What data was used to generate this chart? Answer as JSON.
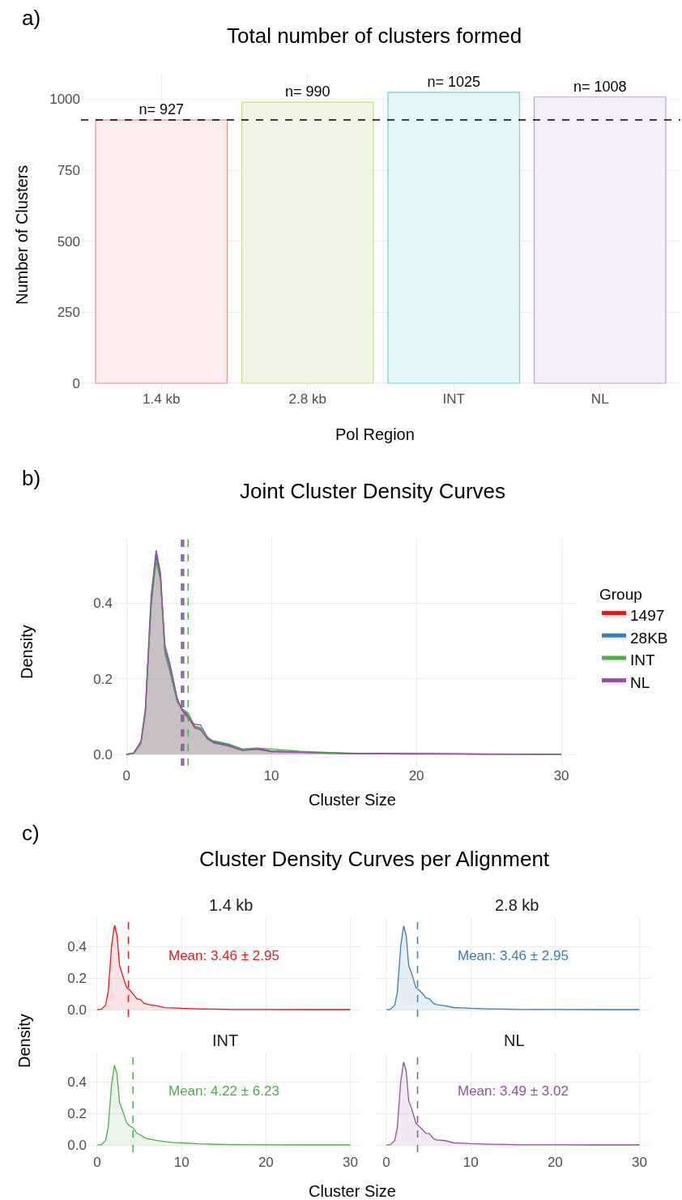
{
  "chart_data": [
    {
      "type": "bar",
      "title": "Total number of clusters formed",
      "xlabel": "Pol Region",
      "ylabel": "Number of Clusters",
      "annotations": [
        "a)"
      ],
      "categories": [
        "1.4 kb",
        "2.8 kb",
        "INT",
        "NL"
      ],
      "values": [
        927,
        990,
        1025,
        1008
      ],
      "colors": [
        "#fdeeed",
        "#f0f4e4",
        "#e2f6f8",
        "#f5effc"
      ],
      "value_labels": [
        "n= 927",
        "n= 990",
        "n= 1025",
        "n= 1008"
      ],
      "ylim": [
        -20,
        1090
      ],
      "yticks": [
        0,
        250,
        500,
        750,
        1000
      ],
      "grid": true,
      "ref_lines": [
        {
          "axis": "y",
          "value": 927,
          "color": "#000000",
          "line_style": "dashed"
        }
      ]
    },
    {
      "type": "area",
      "title": "Joint Cluster Density Curves",
      "xlabel": "Cluster Size",
      "ylabel": "Density",
      "annotations": [
        "b)"
      ],
      "legend_title": "Group",
      "legend": "right",
      "x": [
        0,
        0.5,
        1,
        1.3,
        1.7,
        2.05,
        2.35,
        2.65,
        3,
        3.5,
        3.85,
        4.25,
        4.7,
        5.1,
        5.6,
        6,
        7,
        8,
        9,
        10,
        12,
        14,
        16,
        20,
        25,
        30
      ],
      "series": [
        {
          "name": "1497",
          "color": "#e41a1c",
          "values": [
            0,
            0.003,
            0.03,
            0.11,
            0.4,
            0.535,
            0.47,
            0.27,
            0.22,
            0.14,
            0.12,
            0.1,
            0.07,
            0.065,
            0.04,
            0.034,
            0.026,
            0.013,
            0.015,
            0.009,
            0.006,
            0.004,
            0.002,
            0.002,
            0.001,
            0.001
          ]
        },
        {
          "name": "28KB",
          "color": "#377eb8",
          "values": [
            0,
            0.003,
            0.03,
            0.11,
            0.4,
            0.525,
            0.47,
            0.28,
            0.23,
            0.14,
            0.12,
            0.105,
            0.075,
            0.07,
            0.04,
            0.032,
            0.025,
            0.012,
            0.016,
            0.009,
            0.006,
            0.004,
            0.002,
            0.002,
            0.001,
            0.001
          ]
        },
        {
          "name": "INT",
          "color": "#4daf4a",
          "values": [
            0,
            0.003,
            0.03,
            0.11,
            0.39,
            0.51,
            0.46,
            0.27,
            0.22,
            0.14,
            0.12,
            0.11,
            0.075,
            0.065,
            0.045,
            0.036,
            0.028,
            0.014,
            0.017,
            0.014,
            0.008,
            0.005,
            0.003,
            0.002,
            0.001,
            0.001
          ]
        },
        {
          "name": "NL",
          "color": "#984ea3",
          "values": [
            0,
            0.004,
            0.035,
            0.12,
            0.42,
            0.54,
            0.48,
            0.29,
            0.24,
            0.15,
            0.115,
            0.095,
            0.08,
            0.078,
            0.045,
            0.03,
            0.022,
            0.01,
            0.013,
            0.007,
            0.005,
            0.003,
            0.002,
            0.001,
            0.001,
            0
          ]
        }
      ],
      "xlim": [
        -0.9,
        31
      ],
      "xticks": [
        0,
        10,
        20,
        30
      ],
      "ylim": [
        -0.03,
        0.57
      ],
      "yticks": [
        {
          "value": 0,
          "label": "0.0"
        },
        {
          "value": 0.2,
          "label": "0.2"
        },
        {
          "value": 0.4,
          "label": "0.4"
        }
      ],
      "grid": true,
      "ref_lines": [
        {
          "axis": "x",
          "value": 3.8,
          "color": "#e41a1c",
          "line_style": "dashed"
        },
        {
          "axis": "x",
          "value": 3.85,
          "color": "#377eb8",
          "line_style": "dashed"
        },
        {
          "axis": "x",
          "value": 3.95,
          "color": "#984ea3",
          "line_style": "dashed"
        },
        {
          "axis": "x",
          "value": 4.25,
          "color": "#4daf4a",
          "line_style": "dashed"
        }
      ]
    },
    {
      "type": "area",
      "title": "Cluster Density Curves per Alignment",
      "subtitle": "1.4 kb",
      "ylabel": "Density",
      "annotations": [
        "c)",
        "Mean: 3.46 ± 2.95"
      ],
      "tick_labels": "y",
      "x": [
        0,
        0.5,
        1,
        1.3,
        1.7,
        2.05,
        2.35,
        2.65,
        3,
        3.5,
        3.85,
        4.25,
        4.7,
        5.1,
        5.6,
        6,
        7,
        8,
        9,
        10,
        12,
        14,
        16,
        20,
        25,
        30
      ],
      "series": [
        {
          "color": "#e41a1c",
          "values": [
            0,
            0.003,
            0.03,
            0.11,
            0.4,
            0.535,
            0.47,
            0.28,
            0.22,
            0.14,
            0.125,
            0.1,
            0.07,
            0.065,
            0.04,
            0.034,
            0.026,
            0.013,
            0.012,
            0.009,
            0.006,
            0.004,
            0.002,
            0.002,
            0.001,
            0.001
          ]
        }
      ],
      "xlim": [
        -1.15,
        31.2
      ],
      "xticks": [
        {
          "value": 0,
          "label": null
        },
        {
          "value": 10,
          "label": null
        },
        {
          "value": 20,
          "label": null
        },
        {
          "value": 30,
          "label": null
        }
      ],
      "ylim": [
        -0.045,
        0.58
      ],
      "yticks": [
        {
          "value": 0,
          "label": "0.0"
        },
        {
          "value": 0.2,
          "label": "0.2"
        },
        {
          "value": 0.4,
          "label": "0.4"
        }
      ],
      "grid": true,
      "ref_lines": [
        {
          "axis": "x",
          "value": 3.7,
          "color": "#e41a1c",
          "line_style": "dashed"
        }
      ]
    },
    {
      "type": "area",
      "subtitle": "2.8 kb",
      "annotations": [
        "Mean: 3.46 ± 2.95"
      ],
      "tick_labels": false,
      "x": [
        0,
        0.5,
        1,
        1.3,
        1.7,
        2.05,
        2.35,
        2.65,
        3,
        3.5,
        3.85,
        4.25,
        4.7,
        5.1,
        5.6,
        6,
        7,
        8,
        9,
        10,
        12,
        14,
        16,
        20,
        25,
        30
      ],
      "series": [
        {
          "color": "#377eb8",
          "values": [
            0,
            0.003,
            0.03,
            0.11,
            0.4,
            0.53,
            0.47,
            0.28,
            0.23,
            0.14,
            0.125,
            0.105,
            0.075,
            0.07,
            0.04,
            0.032,
            0.025,
            0.014,
            0.012,
            0.009,
            0.006,
            0.004,
            0.002,
            0.002,
            0.001,
            0.001
          ]
        }
      ],
      "xlim": [
        -1.15,
        31.2
      ],
      "xticks": [
        {
          "value": 0,
          "label": null
        },
        {
          "value": 10,
          "label": null
        },
        {
          "value": 20,
          "label": null
        },
        {
          "value": 30,
          "label": null
        }
      ],
      "ylim": [
        -0.045,
        0.58
      ],
      "yticks": [
        {
          "value": 0,
          "label": null
        },
        {
          "value": 0.2,
          "label": null
        },
        {
          "value": 0.4,
          "label": null
        }
      ],
      "grid": true,
      "ref_lines": [
        {
          "axis": "x",
          "value": 3.7,
          "color": "#377eb8",
          "line_style": "dashed"
        }
      ]
    },
    {
      "type": "area",
      "subtitle": "INT",
      "xlabel": "Cluster Size",
      "annotations": [
        "Mean: 4.22 ± 6.23"
      ],
      "x": [
        0,
        0.5,
        1,
        1.3,
        1.7,
        2.05,
        2.35,
        2.65,
        3,
        3.5,
        3.85,
        4.25,
        4.7,
        5.1,
        5.6,
        6,
        7,
        8,
        9,
        10,
        12,
        14,
        16,
        20,
        25,
        30
      ],
      "series": [
        {
          "color": "#4daf4a",
          "values": [
            0,
            0.003,
            0.03,
            0.11,
            0.38,
            0.505,
            0.45,
            0.27,
            0.22,
            0.14,
            0.12,
            0.11,
            0.075,
            0.065,
            0.048,
            0.04,
            0.03,
            0.022,
            0.016,
            0.014,
            0.008,
            0.005,
            0.003,
            0.002,
            0.001,
            0.001
          ]
        }
      ],
      "xlim": [
        -1.15,
        31.2
      ],
      "xticks": [
        0,
        10,
        20,
        30
      ],
      "ylim": [
        -0.045,
        0.58
      ],
      "yticks": [
        {
          "value": 0,
          "label": "0.0"
        },
        {
          "value": 0.2,
          "label": "0.2"
        },
        {
          "value": 0.4,
          "label": "0.4"
        }
      ],
      "grid": true,
      "ref_lines": [
        {
          "axis": "x",
          "value": 4.25,
          "color": "#4daf4a",
          "line_style": "dashed"
        }
      ]
    },
    {
      "type": "area",
      "subtitle": "NL",
      "annotations": [
        "Mean: 3.49 ± 3.02"
      ],
      "tick_labels": "x",
      "x": [
        0,
        0.5,
        1,
        1.3,
        1.7,
        2.05,
        2.35,
        2.65,
        3,
        3.5,
        3.85,
        4.25,
        4.7,
        5.1,
        5.6,
        6,
        7,
        8,
        9,
        10,
        12,
        14,
        16,
        20,
        25,
        30
      ],
      "series": [
        {
          "color": "#984ea3",
          "values": [
            0,
            0.003,
            0.03,
            0.11,
            0.4,
            0.525,
            0.47,
            0.28,
            0.23,
            0.14,
            0.12,
            0.1,
            0.075,
            0.072,
            0.04,
            0.032,
            0.028,
            0.014,
            0.012,
            0.009,
            0.006,
            0.004,
            0.002,
            0.002,
            0.001,
            0.001
          ]
        }
      ],
      "xlim": [
        -1.15,
        31.2
      ],
      "xticks": [
        0,
        10,
        20,
        30
      ],
      "ylim": [
        -0.045,
        0.58
      ],
      "yticks": [
        {
          "value": 0,
          "label": null
        },
        {
          "value": 0.2,
          "label": null
        },
        {
          "value": 0.4,
          "label": null
        }
      ],
      "grid": true,
      "ref_lines": [
        {
          "axis": "x",
          "value": 3.7,
          "color": "#984ea3",
          "line_style": "dashed"
        }
      ]
    }
  ]
}
